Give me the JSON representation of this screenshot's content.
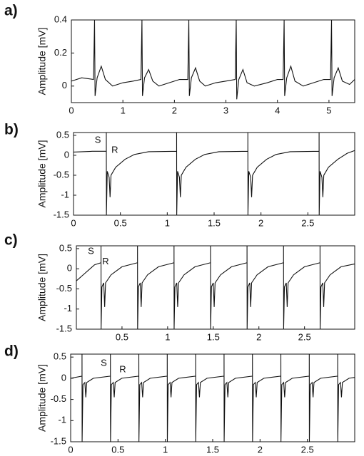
{
  "chart_data": [
    {
      "type": "line",
      "label": "a)",
      "ylabel": "Amplitude [mV]",
      "x": [
        0,
        0.2,
        0.43,
        0.45,
        0.46,
        0.5,
        0.58,
        0.66,
        0.8,
        1.0,
        1.2,
        1.35,
        1.37,
        1.38,
        1.42,
        1.5,
        1.58,
        1.7,
        1.9,
        2.1,
        2.26,
        2.28,
        2.29,
        2.33,
        2.41,
        2.49,
        2.6,
        2.8,
        3.0,
        3.18,
        3.2,
        3.21,
        3.25,
        3.33,
        3.41,
        3.55,
        3.8,
        4.0,
        4.11,
        4.13,
        4.14,
        4.18,
        4.26,
        4.34,
        4.5,
        4.7,
        4.9,
        5.03,
        5.05,
        5.06,
        5.1,
        5.18,
        5.26,
        5.4,
        5.5
      ],
      "values": [
        0.03,
        0.05,
        0.04,
        0.4,
        -0.06,
        0.05,
        0.12,
        0.04,
        0.0,
        0.02,
        0.03,
        0.04,
        0.4,
        -0.06,
        0.05,
        0.1,
        0.03,
        0.0,
        0.02,
        0.04,
        0.04,
        0.4,
        -0.06,
        0.05,
        0.11,
        0.03,
        0.0,
        0.02,
        0.03,
        0.04,
        0.4,
        -0.08,
        0.04,
        0.1,
        0.02,
        0.0,
        0.02,
        0.04,
        0.04,
        0.4,
        -0.06,
        0.05,
        0.12,
        0.03,
        0.0,
        0.02,
        0.04,
        0.04,
        0.4,
        -0.06,
        0.05,
        0.11,
        0.03,
        0.01,
        0.04
      ],
      "xlim": [
        0,
        5.5
      ],
      "ylim": [
        -0.1,
        0.4
      ],
      "xticks": [
        0,
        1,
        2,
        3,
        4,
        5
      ],
      "yticks": [
        0,
        0.2,
        0.4
      ],
      "color": "#111111"
    },
    {
      "type": "line",
      "label": "b)",
      "ylabel": "Amplitude [mV]",
      "x": [
        0,
        0.2,
        0.35,
        0.35,
        0.351,
        0.36,
        0.38,
        0.39,
        0.4,
        0.45,
        0.55,
        0.65,
        0.8,
        1.1,
        1.1,
        1.101,
        1.11,
        1.13,
        1.14,
        1.15,
        1.2,
        1.3,
        1.4,
        1.55,
        1.86,
        1.86,
        1.861,
        1.87,
        1.89,
        1.9,
        1.91,
        1.96,
        2.06,
        2.16,
        2.31,
        2.62,
        2.62,
        2.621,
        2.63,
        2.65,
        2.66,
        2.67,
        2.72,
        2.82,
        2.92,
        3.0
      ],
      "values": [
        0.08,
        0.1,
        0.1,
        0.57,
        -1.5,
        -0.4,
        -0.55,
        -1.05,
        -0.5,
        -0.3,
        -0.1,
        0.02,
        0.09,
        0.1,
        0.57,
        -1.5,
        -0.4,
        -0.55,
        -1.05,
        -0.5,
        -0.3,
        -0.1,
        0.02,
        0.09,
        0.1,
        0.57,
        -1.5,
        -0.4,
        -0.55,
        -1.05,
        -0.5,
        -0.3,
        -0.1,
        0.02,
        0.09,
        0.1,
        0.57,
        -1.5,
        -0.4,
        -0.55,
        -1.05,
        -0.5,
        -0.3,
        -0.1,
        0.05,
        0.12
      ],
      "xlim": [
        0,
        3.0
      ],
      "ylim": [
        -1.5,
        0.57
      ],
      "xticks": [
        0,
        0.5,
        1,
        1.5,
        2,
        2.5
      ],
      "yticks": [
        0.5,
        0,
        -0.5,
        -1,
        -1.5
      ],
      "color": "#111111",
      "annotations": [
        "S",
        "R"
      ]
    },
    {
      "type": "line",
      "label": "c)",
      "ylabel": "Amplitude [mV]",
      "x": [
        0,
        0.1,
        0.2,
        0.27,
        0.27,
        0.271,
        0.28,
        0.3,
        0.31,
        0.32,
        0.38,
        0.5,
        0.67,
        0.67,
        0.671,
        0.68,
        0.7,
        0.71,
        0.72,
        0.78,
        0.9,
        1.07,
        1.07,
        1.071,
        1.08,
        1.1,
        1.11,
        1.12,
        1.18,
        1.3,
        1.47,
        1.47,
        1.471,
        1.48,
        1.5,
        1.51,
        1.52,
        1.58,
        1.7,
        1.87,
        1.87,
        1.871,
        1.88,
        1.9,
        1.91,
        1.92,
        1.98,
        2.1,
        2.27,
        2.27,
        2.271,
        2.28,
        2.3,
        2.31,
        2.32,
        2.38,
        2.5,
        2.67,
        2.67,
        2.671,
        2.68,
        2.7,
        2.71,
        2.72,
        2.78,
        2.9,
        3.05
      ],
      "values": [
        -0.3,
        -0.1,
        0.1,
        0.15,
        0.57,
        -1.5,
        -0.45,
        -0.35,
        -0.95,
        -0.35,
        -0.15,
        0.05,
        0.15,
        0.57,
        -1.5,
        -0.45,
        -0.35,
        -0.95,
        -0.35,
        -0.15,
        0.05,
        0.15,
        0.57,
        -1.5,
        -0.45,
        -0.35,
        -0.95,
        -0.35,
        -0.15,
        0.05,
        0.15,
        0.57,
        -1.5,
        -0.45,
        -0.35,
        -0.95,
        -0.35,
        -0.15,
        0.05,
        0.15,
        0.57,
        -1.5,
        -0.45,
        -0.35,
        -0.95,
        -0.35,
        -0.15,
        0.05,
        0.15,
        0.57,
        -1.5,
        -0.45,
        -0.35,
        -0.95,
        -0.35,
        -0.15,
        0.05,
        0.15,
        0.57,
        -1.5,
        -0.45,
        -0.35,
        -0.95,
        -0.35,
        -0.15,
        0.05,
        0.12
      ],
      "xlim": [
        0,
        3.05
      ],
      "ylim": [
        -1.5,
        0.57
      ],
      "xticks": [
        0.5,
        1,
        1.5,
        2,
        2.5
      ],
      "yticks": [
        0.5,
        0,
        -0.5,
        -1,
        -1.5
      ],
      "color": "#111111",
      "annotations": [
        "S",
        "R"
      ]
    },
    {
      "type": "line",
      "label": "d)",
      "ylabel": "Amplitude [mV]",
      "x": [
        0,
        0.12,
        0.12,
        0.121,
        0.13,
        0.15,
        0.16,
        0.17,
        0.24,
        0.42,
        0.42,
        0.421,
        0.43,
        0.45,
        0.46,
        0.47,
        0.54,
        0.72,
        0.72,
        0.721,
        0.73,
        0.75,
        0.76,
        0.77,
        0.84,
        1.02,
        1.02,
        1.021,
        1.03,
        1.05,
        1.06,
        1.07,
        1.14,
        1.32,
        1.32,
        1.321,
        1.33,
        1.35,
        1.36,
        1.37,
        1.44,
        1.62,
        1.62,
        1.621,
        1.63,
        1.65,
        1.66,
        1.67,
        1.74,
        1.92,
        1.92,
        1.921,
        1.93,
        1.95,
        1.96,
        1.97,
        2.04,
        2.22,
        2.22,
        2.221,
        2.23,
        2.25,
        2.26,
        2.27,
        2.34,
        2.52,
        2.52,
        2.521,
        2.53,
        2.55,
        2.56,
        2.57,
        2.64,
        2.82,
        2.82,
        2.821,
        2.83,
        2.85,
        2.86,
        2.87,
        2.94,
        3.0
      ],
      "values": [
        0.0,
        0.05,
        0.57,
        -1.5,
        -0.15,
        -0.1,
        -0.45,
        -0.1,
        0.0,
        0.05,
        0.57,
        -1.5,
        -0.15,
        -0.1,
        -0.45,
        -0.1,
        0.0,
        0.05,
        0.57,
        -1.5,
        -0.15,
        -0.1,
        -0.45,
        -0.1,
        0.0,
        0.05,
        0.57,
        -1.5,
        -0.15,
        -0.1,
        -0.45,
        -0.1,
        0.0,
        0.05,
        0.57,
        -1.5,
        -0.15,
        -0.1,
        -0.45,
        -0.1,
        0.0,
        0.05,
        0.57,
        -1.5,
        -0.15,
        -0.1,
        -0.45,
        -0.1,
        0.0,
        0.05,
        0.57,
        -1.5,
        -0.15,
        -0.1,
        -0.45,
        -0.1,
        0.0,
        0.05,
        0.57,
        -1.5,
        -0.15,
        -0.1,
        -0.45,
        -0.1,
        0.0,
        0.05,
        0.57,
        -1.5,
        -0.15,
        -0.1,
        -0.45,
        -0.1,
        0.0,
        0.05,
        0.57,
        -1.5,
        -0.15,
        -0.1,
        -0.45,
        -0.1,
        0.0,
        0.02
      ],
      "xlim": [
        0,
        3.0
      ],
      "ylim": [
        -1.5,
        0.57
      ],
      "xticks": [
        0,
        0.5,
        1,
        1.5,
        2,
        2.5
      ],
      "yticks": [
        0.5,
        0,
        -0.5,
        -1,
        -1.5
      ],
      "color": "#111111",
      "annotations": [
        "S",
        "R"
      ]
    }
  ]
}
